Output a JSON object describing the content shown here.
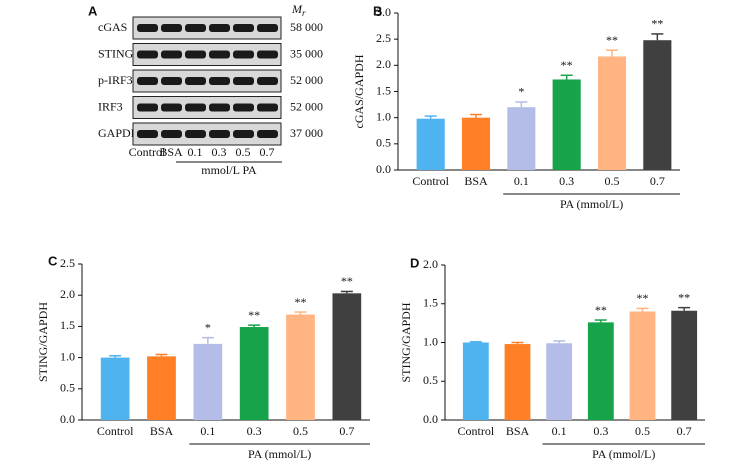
{
  "blot": {
    "panel": "A",
    "mr_symbol": "M",
    "mr_subscript": "r",
    "rows": [
      {
        "name": "cGAS",
        "mw": "58 000"
      },
      {
        "name": "STING",
        "mw": "35 000"
      },
      {
        "name": "p-IRF3",
        "mw": "52 000"
      },
      {
        "name": "IRF3",
        "mw": "52 000"
      },
      {
        "name": "GAPDH",
        "mw": "37 000"
      }
    ],
    "lanes": [
      "Control",
      "BSA",
      "0.1",
      "0.3",
      "0.5",
      "0.7"
    ],
    "group_label": "mmol/L PA"
  },
  "chart_data": [
    {
      "type": "bar",
      "panel": "B",
      "y_label": "cGAS/GAPDH",
      "x_label": "PA (mmol/L)",
      "categories": [
        "Control",
        "BSA",
        "0.1",
        "0.3",
        "0.5",
        "0.7"
      ],
      "values": [
        0.98,
        1.0,
        1.2,
        1.73,
        2.17,
        2.48
      ],
      "errors": [
        0.05,
        0.06,
        0.1,
        0.08,
        0.12,
        0.12
      ],
      "annotations": [
        null,
        null,
        "*",
        "**",
        "**",
        "**"
      ],
      "colors": [
        "#4fb3f0",
        "#ff7f27",
        "#b4bde8",
        "#17a34a",
        "#ffb482",
        "#404040"
      ],
      "ylim": [
        0,
        3
      ],
      "yticks": [
        {
          "value": 0,
          "label": "0.0"
        },
        {
          "value": 0.5,
          "label": "0.5"
        },
        {
          "value": 1,
          "label": "1.0"
        },
        {
          "value": 1.5,
          "label": "1.5"
        },
        {
          "value": 2,
          "label": "2.0"
        },
        {
          "value": 2.5,
          "label": "2.5"
        },
        {
          "value": 3,
          "label": "3.0"
        }
      ]
    },
    {
      "type": "bar",
      "panel": "C",
      "y_label": "STING/GAPDH",
      "x_label": "PA (mmol/L)",
      "categories": [
        "Control",
        "BSA",
        "0.1",
        "0.3",
        "0.5",
        "0.7"
      ],
      "values": [
        1.0,
        1.02,
        1.22,
        1.49,
        1.69,
        2.03
      ],
      "errors": [
        0.03,
        0.03,
        0.1,
        0.03,
        0.04,
        0.03
      ],
      "annotations": [
        null,
        null,
        "*",
        "**",
        "**",
        "**"
      ],
      "colors": [
        "#4fb3f0",
        "#ff7f27",
        "#b4bde8",
        "#17a34a",
        "#ffb482",
        "#404040"
      ],
      "ylim": [
        0,
        2.5
      ],
      "yticks": [
        {
          "value": 0,
          "label": "0.0"
        },
        {
          "value": 0.5,
          "label": "0.5"
        },
        {
          "value": 1,
          "label": "1.0"
        },
        {
          "value": 1.5,
          "label": "1.5"
        },
        {
          "value": 2,
          "label": "2.0"
        },
        {
          "value": 2.5,
          "label": "2.5"
        }
      ]
    },
    {
      "type": "bar",
      "panel": "D",
      "y_label": "STING/GAPDH",
      "x_label": "PA (mmol/L)",
      "categories": [
        "Control",
        "BSA",
        "0.1",
        "0.3",
        "0.5",
        "0.7"
      ],
      "values": [
        1.0,
        0.98,
        0.99,
        1.26,
        1.4,
        1.41
      ],
      "errors": [
        0.01,
        0.02,
        0.03,
        0.03,
        0.04,
        0.04
      ],
      "annotations": [
        null,
        null,
        null,
        "**",
        "**",
        "**"
      ],
      "colors": [
        "#4fb3f0",
        "#ff7f27",
        "#b4bde8",
        "#17a34a",
        "#ffb482",
        "#404040"
      ],
      "ylim": [
        0,
        2.0
      ],
      "yticks": [
        {
          "value": 0,
          "label": "0.0"
        },
        {
          "value": 0.5,
          "label": "0.5"
        },
        {
          "value": 1,
          "label": "1.0"
        },
        {
          "value": 1.5,
          "label": "1.5"
        },
        {
          "value": 2,
          "label": "2.0"
        }
      ]
    }
  ]
}
